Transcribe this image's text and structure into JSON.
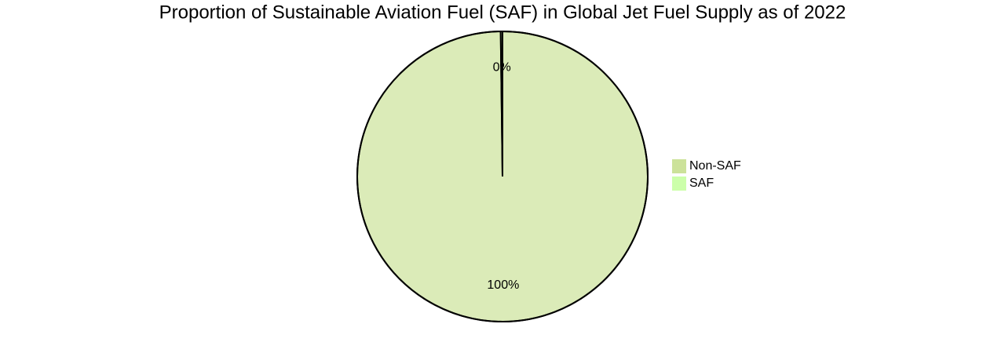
{
  "chart_data": {
    "type": "pie",
    "title": "Proportion of Sustainable Aviation Fuel (SAF) in Global Jet Fuel Supply as of 2022",
    "categories": [
      "Non-SAF",
      "SAF"
    ],
    "values": [
      99.8,
      0.2
    ],
    "value_labels": [
      "100%",
      "0%"
    ],
    "colors": [
      "#cce29a",
      "#ccffaa"
    ],
    "legend": "right"
  }
}
